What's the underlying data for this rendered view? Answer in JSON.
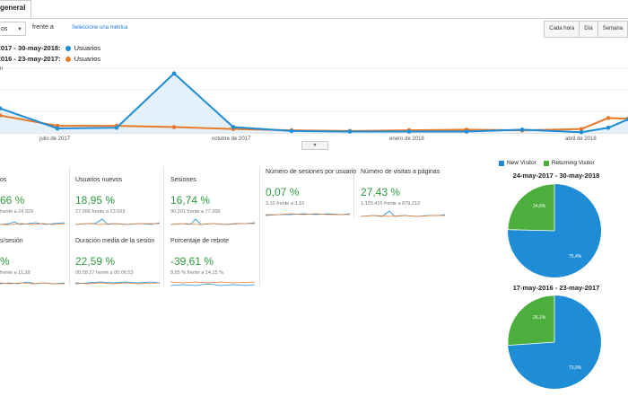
{
  "tab": {
    "label": "general"
  },
  "controls": {
    "select_value": "os",
    "vs_label": "frente a",
    "metric_link": "Seleccione una métrica",
    "time_buttons": [
      "Cada hora",
      "Día",
      "Semana"
    ]
  },
  "legend": [
    {
      "range": "y-2017 - 30-may-2018:",
      "name": "Usuarios",
      "color": "#1f8dd6"
    },
    {
      "range": "y-2016 - 23-may-2017:",
      "name": "Usuarios",
      "color": "#e8792b"
    }
  ],
  "chart_data": {
    "type": "line",
    "x_labels": [
      "julio de 2017",
      "octubre de 2017",
      "enero de 2018",
      "abril de 2018"
    ],
    "series": [
      {
        "name": "Usuarios",
        "color": "#1f8dd6",
        "values": [
          0.38,
          0.07,
          0.08,
          0.92,
          0.09,
          0.03,
          0.02,
          0.02,
          0.02,
          0.05,
          0.01,
          0.08,
          0.21
        ]
      },
      {
        "name": "Usuarios",
        "color": "#e8792b",
        "values": [
          0.27,
          0.11,
          0.11,
          0.09,
          0.06,
          0.04,
          0.03,
          0.04,
          0.05,
          0.04,
          0.06,
          0.23,
          0.22
        ]
      }
    ],
    "y_top_label": "n"
  },
  "metrics": [
    {
      "title": "os",
      "value": "66 %",
      "sub": "frente a 24.929"
    },
    {
      "title": "Usuarios nuevos",
      "value": "18,95 %",
      "sub": "27.956 frente a 23.503"
    },
    {
      "title": "Sesiones",
      "value": "16,74 %",
      "sub": "90.201 frente a 77.268"
    },
    {
      "title": "Número de sesiones por usuario",
      "value": "0,07 %",
      "sub": "3,10 frente a 3,10"
    },
    {
      "title": "Número de visitas a páginas",
      "value": "27,43 %",
      "sub": "1.120.415 frente a 879.213"
    },
    {
      "title": "s/sesión",
      "value": "% ",
      "sub": "frente a 11,38"
    },
    {
      "title": "Duración media de la sesión",
      "value": "22,59 %",
      "sub": "00:08:27 frente a 00:06:53"
    },
    {
      "title": "Porcentaje de rebote",
      "value": "-39,61 %",
      "sub": "8,55 % frente a 14,15 %"
    }
  ],
  "pie_legend": [
    {
      "label": "New Visitor",
      "color": "#1f8dd6"
    },
    {
      "label": "Returning Visitor",
      "color": "#4cae3c"
    }
  ],
  "pies": [
    {
      "title": "24-may-2017 - 30-may-2018",
      "new": 75.4,
      "returning": 24.6,
      "new_label": "75,4%",
      "ret_label": "24,6%"
    },
    {
      "title": "17-may-2016 - 23-may-2017",
      "new": 73.9,
      "returning": 26.1,
      "new_label": "73,9%",
      "ret_label": "26,1%"
    }
  ]
}
